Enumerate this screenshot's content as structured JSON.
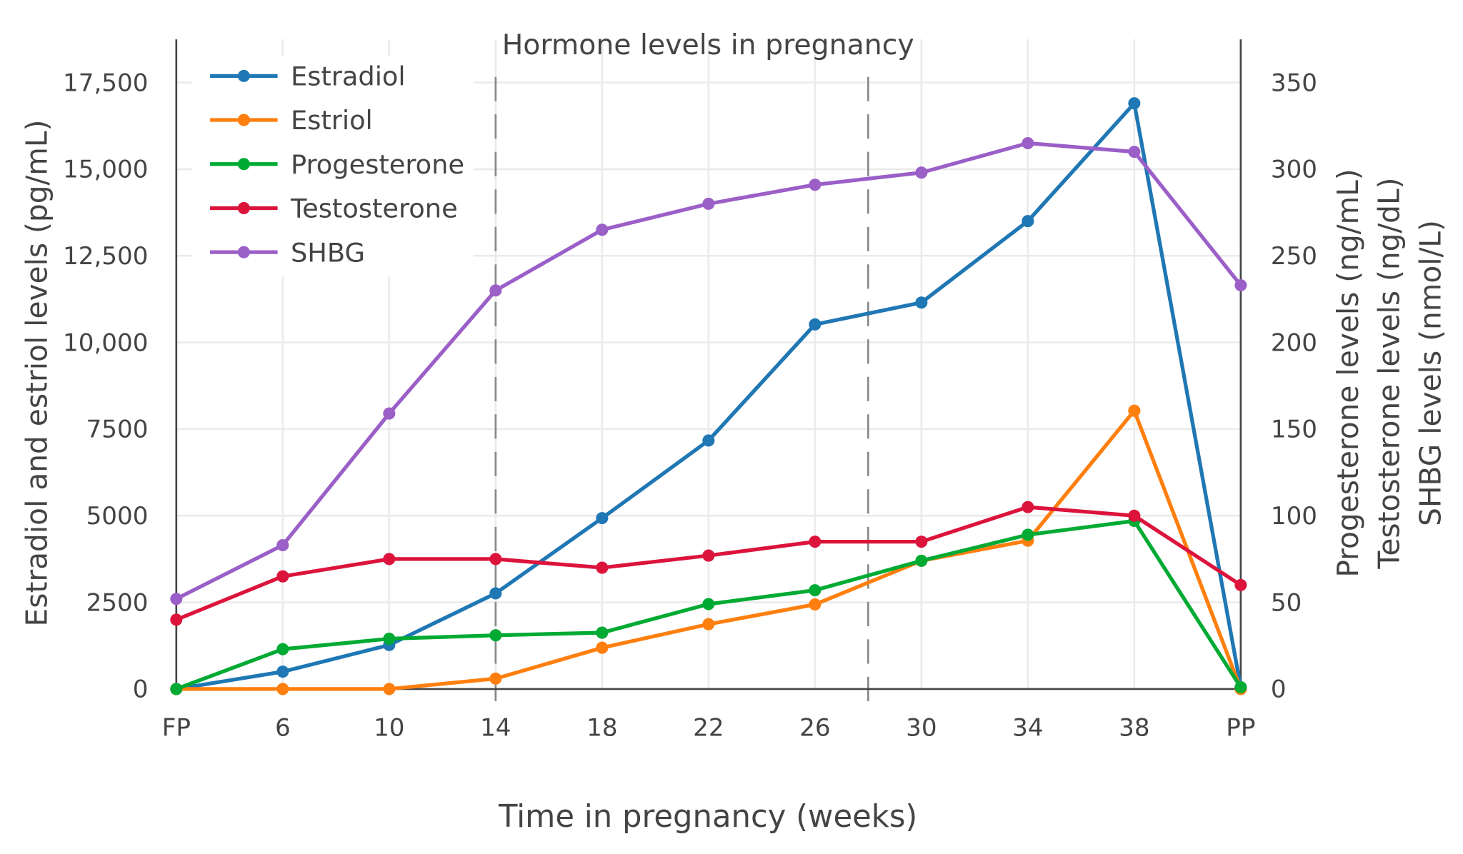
{
  "chart_data": {
    "type": "line",
    "title": "Hormone levels in pregnancy",
    "xlabel": "Time in pregnancy (weeks)",
    "ylabel_left": "Estradiol and estriol levels (pg/mL)",
    "ylabel_right": [
      "Progesterone levels (ng/mL)",
      "Testosterone levels (ng/dL)",
      "SHBG levels (nmol/L)"
    ],
    "categories": [
      "FP",
      "6",
      "10",
      "14",
      "18",
      "22",
      "26",
      "30",
      "34",
      "38",
      "PP"
    ],
    "y_left": {
      "range": [
        0,
        17500
      ],
      "ticks": [
        0,
        2500,
        5000,
        7500,
        10000,
        12500,
        15000,
        17500
      ],
      "tick_labels": [
        "0",
        "2500",
        "5000",
        "7500",
        "10,000",
        "12,500",
        "15,000",
        "17,500"
      ]
    },
    "y_right": {
      "range": [
        0,
        350
      ],
      "ticks": [
        0,
        50,
        100,
        150,
        200,
        250,
        300,
        350
      ],
      "tick_labels": [
        "0",
        "50",
        "100",
        "150",
        "200",
        "250",
        "300",
        "350"
      ]
    },
    "trimester_markers": [
      14,
      28
    ],
    "grid": true,
    "legend_position": "top-left",
    "series": [
      {
        "name": "Estradiol",
        "axis": "left",
        "color": "#1f77b4",
        "values": [
          0,
          500,
          1270,
          2760,
          4930,
          7170,
          10520,
          11150,
          13500,
          16900,
          50
        ]
      },
      {
        "name": "Estriol",
        "axis": "left",
        "color": "#ff7f0e",
        "values": [
          0,
          0,
          0,
          300,
          1190,
          1870,
          2440,
          3700,
          4280,
          8030,
          0
        ]
      },
      {
        "name": "Progesterone",
        "axis": "right",
        "color": "#00aa33",
        "values": [
          0,
          23,
          29,
          31,
          32.5,
          49,
          57,
          74,
          89,
          97,
          1
        ]
      },
      {
        "name": "Testosterone",
        "axis": "right",
        "color": "#dc143c",
        "values": [
          40,
          65,
          75,
          75,
          70,
          77,
          85,
          85,
          105,
          100,
          60
        ]
      },
      {
        "name": "SHBG",
        "axis": "right",
        "color": "#9b5fc8",
        "values": [
          52,
          83,
          159,
          230,
          265,
          280,
          291,
          298,
          315,
          310,
          233
        ]
      }
    ]
  }
}
